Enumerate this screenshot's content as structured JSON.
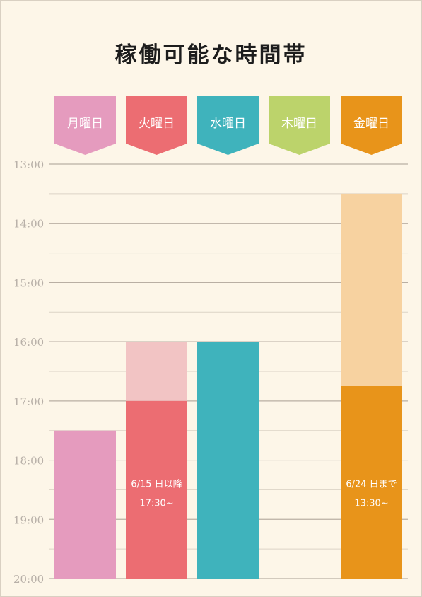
{
  "chart_data": {
    "type": "bar",
    "title": "稼働可能な時間帯",
    "categories": [
      "月曜日",
      "火曜日",
      "水曜日",
      "木曜日",
      "金曜日"
    ],
    "category_colors": [
      "#e59bbe",
      "#ec6d72",
      "#3fb3bc",
      "#bcd36b",
      "#e8941a"
    ],
    "y_ticks": [
      "13:00",
      "14:00",
      "15:00",
      "16:00",
      "17:00",
      "18:00",
      "19:00",
      "20:00"
    ],
    "ylim": [
      "13:00",
      "20:00"
    ],
    "y_inverted": true,
    "grid": true,
    "bars": [
      {
        "day": "月曜日",
        "start": "17:30",
        "end": "20:00",
        "color": "#e59bbe",
        "light": false
      },
      {
        "day": "火曜日",
        "start": "16:00",
        "end": "17:00",
        "color": "#f2c4c4",
        "light": true
      },
      {
        "day": "火曜日",
        "start": "17:00",
        "end": "20:00",
        "color": "#ec6d72",
        "light": false
      },
      {
        "day": "水曜日",
        "start": "16:00",
        "end": "20:00",
        "color": "#3fb3bc",
        "light": false
      },
      {
        "day": "金曜日",
        "start": "13:30",
        "end": "16:45",
        "color": "#f7d2a0",
        "light": true
      },
      {
        "day": "金曜日",
        "start": "16:45",
        "end": "20:00",
        "color": "#e8941a",
        "light": false
      }
    ],
    "annotations": [
      {
        "day": "火曜日",
        "line1": "6/15 日以降",
        "line2": "17:30~",
        "at": "18:30"
      },
      {
        "day": "金曜日",
        "line1": "6/24 日まで",
        "line2": "13:30~",
        "at": "18:30"
      }
    ],
    "grid_color": "#c9bfb2",
    "tick_color": "#b8b0a8"
  }
}
